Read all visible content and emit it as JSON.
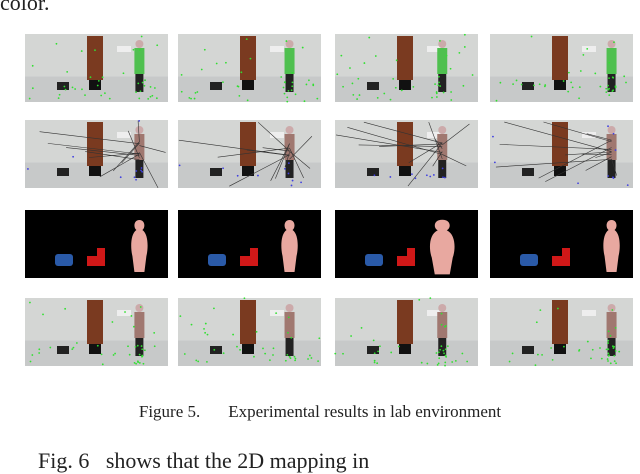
{
  "text_top": "color.",
  "figure": {
    "caption_label": "Figure 5.",
    "caption_text": "Experimental results in lab environment"
  },
  "text_bottom": "Fig. 6   shows that the 2D mapping in"
}
